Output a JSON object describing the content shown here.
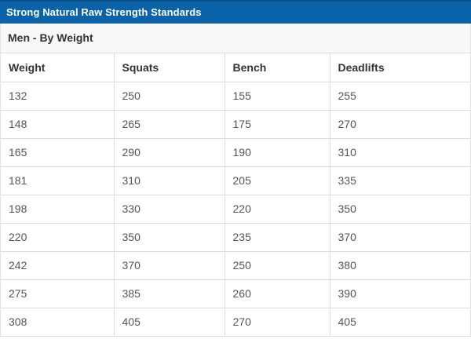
{
  "title_bar": {
    "title": "Strong Natural Raw Strength Standards"
  },
  "section_header": {
    "label": "Men - By Weight"
  },
  "chart_data": {
    "type": "table",
    "title": "Strong Natural Raw Strength Standards",
    "subtitle": "Men - By Weight",
    "columns": [
      "Weight",
      "Squats",
      "Bench",
      "Deadlifts"
    ],
    "rows": [
      [
        132,
        250,
        155,
        255
      ],
      [
        148,
        265,
        175,
        270
      ],
      [
        165,
        290,
        190,
        310
      ],
      [
        181,
        310,
        205,
        335
      ],
      [
        198,
        330,
        220,
        350
      ],
      [
        220,
        350,
        235,
        370
      ],
      [
        242,
        370,
        250,
        380
      ],
      [
        275,
        385,
        260,
        390
      ],
      [
        308,
        405,
        270,
        405
      ]
    ]
  },
  "colors": {
    "title_bar_bg": "#0a62a8",
    "title_bar_top_edge": "#084f87",
    "title_text": "#ffffff",
    "section_bg": "#f8f8f8",
    "section_text": "#333333",
    "header_text": "#333333",
    "cell_text": "#555555",
    "border": "#dddddd"
  }
}
